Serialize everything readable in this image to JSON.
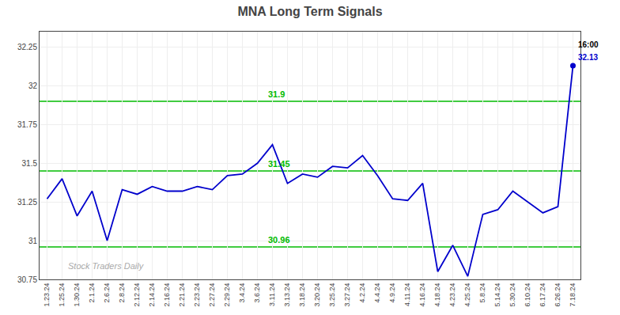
{
  "chart_data": {
    "type": "line",
    "title": "MNA Long Term Signals",
    "categories": [
      "1.23.24",
      "1.25.24",
      "1.30.24",
      "2.1.24",
      "2.6.24",
      "2.8.24",
      "2.12.24",
      "2.14.24",
      "2.16.24",
      "2.21.24",
      "2.23.24",
      "2.27.24",
      "2.29.24",
      "3.4.24",
      "3.6.24",
      "3.11.24",
      "3.13.24",
      "3.18.24",
      "3.20.24",
      "3.25.24",
      "3.27.24",
      "4.2.24",
      "4.4.24",
      "4.9.24",
      "4.11.24",
      "4.16.24",
      "4.18.24",
      "4.23.24",
      "4.25.24",
      "5.8.24",
      "5.14.24",
      "5.30.24",
      "6.10.24",
      "6.17.24",
      "6.26.24",
      "7.18.24"
    ],
    "values": [
      31.27,
      31.4,
      31.16,
      31.32,
      31.0,
      31.33,
      31.3,
      31.35,
      31.32,
      31.32,
      31.35,
      31.33,
      31.42,
      31.43,
      31.5,
      31.62,
      31.37,
      31.43,
      31.41,
      31.48,
      31.47,
      31.55,
      31.42,
      31.27,
      31.26,
      31.37,
      30.8,
      30.97,
      30.77,
      31.17,
      31.2,
      31.32,
      31.25,
      31.18,
      31.22,
      32.13
    ],
    "color": "#0000CC",
    "ylim": [
      30.75,
      32.35
    ],
    "yticks": [
      30.75,
      31,
      31.25,
      31.5,
      31.75,
      32,
      32.25
    ],
    "grid": true,
    "hlines": [
      {
        "value": 31.9,
        "label": "31.9",
        "color": "#00bb00"
      },
      {
        "value": 31.45,
        "label": "31.45",
        "color": "#00bb00"
      },
      {
        "value": 30.96,
        "label": "30.96",
        "color": "#00bb00"
      }
    ],
    "annotations": [
      {
        "text": "16:00",
        "x": "7.18.24",
        "y": 32.13
      },
      {
        "text": "32.13",
        "x": "7.18.24",
        "y": 32.13,
        "color": "#0000CC"
      },
      {
        "text": "Stock Traders Daily",
        "color": "#aaaaaa"
      }
    ]
  }
}
